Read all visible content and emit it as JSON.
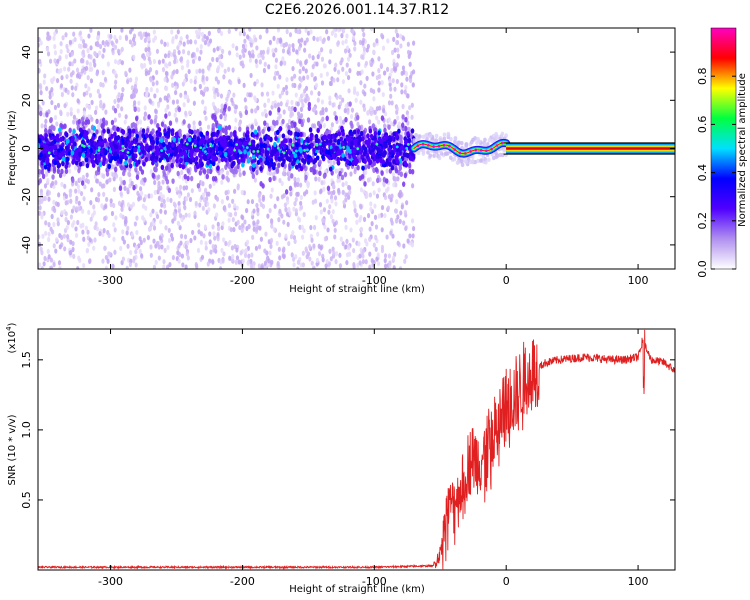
{
  "title": "C2E6.2026.001.14.37.R12",
  "chart_data": [
    {
      "type": "heatmap",
      "xlabel": "Height of straight line (km)",
      "ylabel": "Frequency (Hz)",
      "xlim": [
        -355,
        128
      ],
      "ylim": [
        -50,
        50
      ],
      "xticks": [
        -300,
        -200,
        -100,
        0,
        100
      ],
      "xtick_labels": [
        "-300",
        "-200",
        "-100",
        "0",
        "100"
      ],
      "yticks": [
        -40,
        -20,
        0,
        20,
        40
      ],
      "ytick_labels": [
        "-40",
        "-20",
        "0",
        "20",
        "40"
      ],
      "noise_region_x": [
        -355,
        -70
      ],
      "noise_band_y": [
        -8,
        8
      ],
      "tracking_region_x": [
        -70,
        0
      ],
      "locked_region_x": [
        0,
        128
      ],
      "locked_frequency": 0,
      "colorbar": {
        "label": "Normalized spectral amplitude",
        "range": [
          0,
          1
        ],
        "ticks": [
          0,
          0.2,
          0.4,
          0.6,
          0.8
        ],
        "tick_labels": [
          "0.0",
          "0.2",
          "0.4",
          "0.6",
          "0.8"
        ],
        "colormap": [
          "#ffffff",
          "#b090f0",
          "#5000ff",
          "#0000ff",
          "#00e0ff",
          "#00ff40",
          "#ffff00",
          "#ff0000",
          "#ff00c0"
        ]
      },
      "grid": false
    },
    {
      "type": "line",
      "xlabel": "Height of straight line (km)",
      "ylabel": "SNR (10 * v/v)",
      "y_multiplier_label": "(x10",
      "y_multiplier_exp": "4",
      "y_multiplier_close": ")",
      "xlim": [
        -355,
        128
      ],
      "ylim": [
        0,
        1.72
      ],
      "xticks": [
        -300,
        -200,
        -100,
        0,
        100
      ],
      "xtick_labels": [
        "-300",
        "-200",
        "-100",
        "0",
        "100"
      ],
      "yticks": [
        0.5,
        1.0,
        1.5
      ],
      "ytick_labels": [
        "0.5",
        "1.0",
        "1.5"
      ],
      "color": "#e02020",
      "series": [
        {
          "x": [
            -355,
            -300,
            -200,
            -100,
            -55,
            -50,
            -45,
            -40,
            -35,
            -30,
            -25,
            -20,
            -15,
            -10,
            -5,
            0,
            5,
            10,
            15,
            20,
            25,
            30,
            40,
            50,
            60,
            70,
            80,
            90,
            100,
            104,
            110,
            120,
            128
          ],
          "y": [
            0.02,
            0.02,
            0.02,
            0.02,
            0.03,
            0.12,
            0.45,
            0.5,
            0.55,
            0.75,
            0.8,
            0.78,
            0.85,
            0.95,
            1.05,
            1.18,
            1.22,
            1.3,
            1.38,
            1.42,
            1.45,
            1.48,
            1.5,
            1.51,
            1.52,
            1.51,
            1.5,
            1.5,
            1.52,
            1.62,
            1.5,
            1.48,
            1.42
          ]
        }
      ],
      "grid": false
    }
  ]
}
